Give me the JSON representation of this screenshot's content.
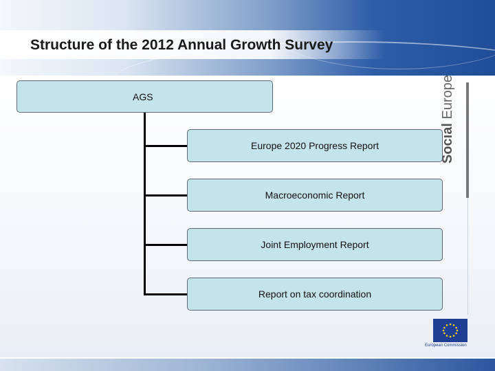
{
  "title": "Structure of the 2012 Annual Growth Survey",
  "diagram": {
    "root": "AGS",
    "children": [
      "Europe 2020 Progress Report",
      "Macroeconomic Report",
      "Joint Employment Report",
      "Report on tax coordination"
    ]
  },
  "branding": {
    "side_bold": "Social",
    "side_regular": "Europe",
    "logo_text": "European Commission"
  }
}
